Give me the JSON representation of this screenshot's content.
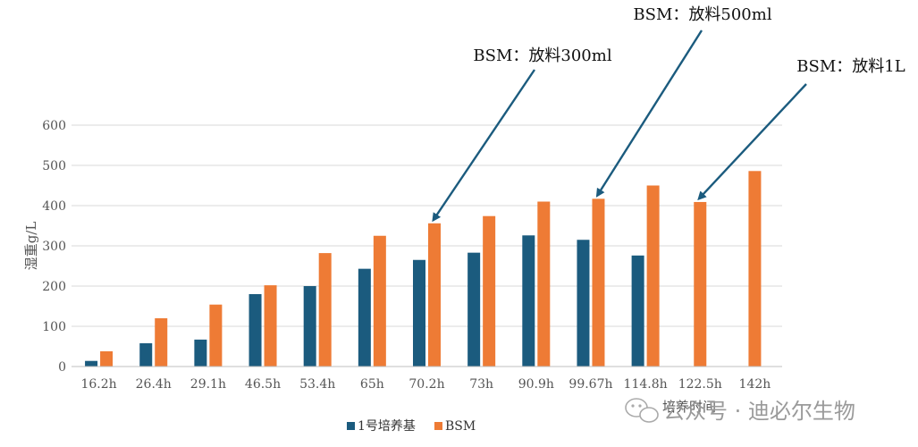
{
  "chart_data": {
    "type": "bar",
    "title": "",
    "xlabel": "培养时间",
    "ylabel": "湿重g/L",
    "ylim": [
      0,
      600
    ],
    "yticks": [
      0,
      100,
      200,
      300,
      400,
      500,
      600
    ],
    "grid": true,
    "legend_position": "bottom",
    "categories": [
      "16.2h",
      "26.4h",
      "29.1h",
      "46.5h",
      "53.4h",
      "65h",
      "70.2h",
      "73h",
      "90.9h",
      "99.67h",
      "114.8h",
      "122.5h",
      "142h"
    ],
    "series": [
      {
        "name": "1号培养基",
        "color": "#1b5b7e",
        "values": [
          14,
          58,
          67,
          180,
          200,
          243,
          265,
          283,
          326,
          315,
          276,
          null,
          null
        ]
      },
      {
        "name": "BSM",
        "color": "#ee7b35",
        "values": [
          38,
          120,
          154,
          202,
          282,
          325,
          356,
          374,
          410,
          417,
          450,
          409,
          486
        ]
      }
    ],
    "annotations": [
      {
        "text": "BSM：放料300ml",
        "category": "70.2h",
        "series": "BSM"
      },
      {
        "text": "BSM：放料500ml",
        "category": "99.67h",
        "series": "BSM"
      },
      {
        "text": "BSM：放料1L",
        "category": "122.5h",
        "series": "BSM"
      }
    ],
    "arrow_color": "#1b5b7e"
  },
  "watermark": {
    "text": "公众号 · 迪必尔生物",
    "icon": "wechat-icon"
  }
}
